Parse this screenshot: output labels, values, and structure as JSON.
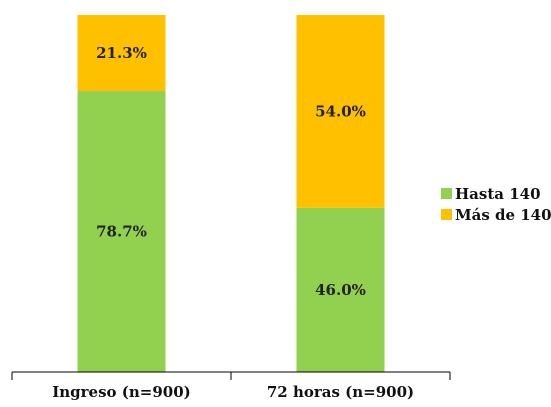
{
  "chart_data": {
    "type": "bar",
    "stacked": true,
    "percent_stacked": true,
    "categories": [
      "Ingreso (n=900)",
      "72 horas (n=900)"
    ],
    "series": [
      {
        "name": "Hasta 140",
        "values": [
          78.7,
          46.0
        ],
        "labels": [
          "78.7%",
          "46.0%"
        ],
        "color": "#92d050"
      },
      {
        "name": "Más de 140",
        "values": [
          21.3,
          54.0
        ],
        "labels": [
          "21.3%",
          "54.0%"
        ],
        "color": "#ffc000"
      }
    ],
    "ylim": [
      0,
      100
    ],
    "grid": false,
    "legend": "right"
  }
}
